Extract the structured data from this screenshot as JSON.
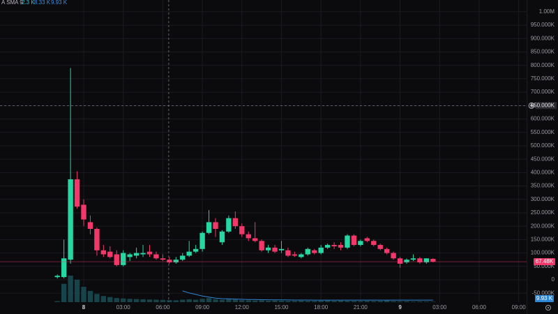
{
  "chart_data": {
    "type": "candlestick",
    "legend": {
      "name": "A SMA 9",
      "values": [
        "2.3 K",
        "8.33 K",
        "9.93 K"
      ]
    },
    "x": [
      -2,
      -1.5,
      -1,
      -0.5,
      0,
      0.5,
      1,
      1.5,
      2,
      2.5,
      3,
      3.5,
      4,
      4.5,
      5,
      5.5,
      6,
      6.5,
      7,
      7.5,
      8,
      8.5,
      9,
      9.5,
      10,
      10.5,
      11,
      11.5,
      12,
      12.5,
      13,
      13.5,
      14,
      14.5,
      15,
      15.5,
      16,
      16.5,
      17,
      17.5,
      18,
      18.5,
      19,
      19.5,
      20,
      20.5,
      21,
      21.5,
      22,
      22.5,
      23,
      23.5,
      24,
      24.5,
      25,
      25.5,
      26,
      26.5
    ],
    "open": [
      10,
      10,
      75,
      375,
      280,
      215,
      190,
      110,
      105,
      95,
      55,
      85,
      90,
      95,
      105,
      95,
      80,
      75,
      65,
      75,
      90,
      105,
      115,
      175,
      215,
      140,
      180,
      230,
      200,
      170,
      155,
      145,
      110,
      120,
      110,
      110,
      95,
      85,
      95,
      110,
      100,
      120,
      130,
      130,
      120,
      165,
      130,
      155,
      145,
      130,
      115,
      100,
      80,
      65,
      75,
      80,
      65,
      78
    ],
    "high": [
      20,
      150,
      790,
      405,
      300,
      240,
      195,
      130,
      125,
      110,
      110,
      100,
      120,
      130,
      130,
      105,
      95,
      85,
      85,
      100,
      145,
      130,
      180,
      260,
      230,
      185,
      240,
      255,
      210,
      180,
      215,
      150,
      130,
      130,
      145,
      120,
      105,
      100,
      120,
      115,
      130,
      135,
      140,
      140,
      170,
      170,
      150,
      160,
      150,
      135,
      120,
      105,
      85,
      80,
      95,
      85,
      80,
      80
    ],
    "low": [
      5,
      5,
      60,
      265,
      200,
      170,
      90,
      85,
      80,
      50,
      50,
      70,
      80,
      85,
      85,
      75,
      70,
      60,
      60,
      70,
      85,
      100,
      105,
      170,
      160,
      130,
      175,
      190,
      160,
      145,
      140,
      105,
      100,
      100,
      100,
      85,
      85,
      80,
      90,
      95,
      95,
      115,
      115,
      110,
      115,
      125,
      125,
      140,
      125,
      110,
      95,
      75,
      45,
      60,
      70,
      60,
      60,
      65
    ],
    "close": [
      15,
      80,
      375,
      273,
      225,
      190,
      110,
      95,
      85,
      55,
      100,
      95,
      100,
      100,
      95,
      80,
      75,
      65,
      75,
      90,
      105,
      115,
      175,
      215,
      190,
      180,
      230,
      200,
      170,
      155,
      145,
      110,
      120,
      105,
      115,
      90,
      90,
      95,
      115,
      100,
      120,
      130,
      125,
      120,
      165,
      130,
      145,
      145,
      130,
      115,
      100,
      80,
      60,
      75,
      80,
      65,
      80,
      67.48
    ],
    "volume": [
      5,
      90,
      130,
      110,
      75,
      55,
      40,
      30,
      25,
      20,
      18,
      16,
      15,
      14,
      13,
      12,
      11,
      10,
      9,
      12,
      14,
      12,
      16,
      20,
      14,
      12,
      15,
      13,
      10,
      9,
      8,
      9,
      7,
      8,
      7,
      6,
      6,
      7,
      6,
      6,
      7,
      8,
      6,
      7,
      6,
      6,
      5,
      6,
      5,
      6,
      8,
      5,
      4,
      5,
      3,
      4,
      3,
      2.3
    ],
    "volume_sma": [
      null,
      null,
      null,
      null,
      null,
      null,
      null,
      null,
      null,
      null,
      null,
      null,
      null,
      null,
      null,
      null,
      null,
      null,
      null,
      55,
      45,
      38,
      30,
      25,
      20,
      17,
      16,
      15,
      14,
      13,
      12.5,
      12,
      11.5,
      11,
      10.8,
      10.5,
      10.3,
      10.2,
      10.1,
      10,
      10,
      9.9,
      9.9,
      9.9,
      9.9,
      9.9,
      9.9,
      9.9,
      9.9,
      9.9,
      9.9,
      9.9,
      9.9,
      9.9,
      9.9,
      9.9,
      9.9,
      9.93
    ],
    "up_color": "#26d6a3",
    "down_color": "#f2386a",
    "volume_color": "#17434b",
    "volume_sma_color": "#2f86d6",
    "xlim": [
      -6.35,
      33.6
    ],
    "xticks": [
      {
        "value": 0,
        "label": "8"
      },
      {
        "value": 3,
        "label": "03:00"
      },
      {
        "value": 6,
        "label": "06:00"
      },
      {
        "value": 9,
        "label": "09:00"
      },
      {
        "value": 12,
        "label": "12:00"
      },
      {
        "value": 15,
        "label": "15:00"
      },
      {
        "value": 18,
        "label": "18:00"
      },
      {
        "value": 21,
        "label": "21:00"
      },
      {
        "value": 24,
        "label": "9"
      },
      {
        "value": 27,
        "label": "03:00"
      },
      {
        "value": 30,
        "label": "06:00"
      },
      {
        "value": 33,
        "label": "09:00"
      }
    ],
    "ylim": [
      -101.6,
      1044
    ],
    "yticks": [
      {
        "value": -50,
        "label": "-50.000K"
      },
      0,
      {
        "value": 50,
        "label": "50.000K"
      },
      {
        "value": 100,
        "label": "100.000K"
      },
      {
        "value": 150,
        "label": "150.000K"
      },
      {
        "value": 200,
        "label": "200.000K"
      },
      {
        "value": 250,
        "label": "250.000K"
      },
      {
        "value": 300,
        "label": "300.000K"
      },
      {
        "value": 350,
        "label": "350.000K"
      },
      {
        "value": 400,
        "label": "400.000K"
      },
      {
        "value": 450,
        "label": "450.000K"
      },
      {
        "value": 500,
        "label": "500.000K"
      },
      {
        "value": 550,
        "label": "550.000K"
      },
      {
        "value": 600,
        "label": "600.000K"
      },
      {
        "value": 650,
        "label": "650.000K"
      },
      {
        "value": 700,
        "label": "700.000K"
      },
      {
        "value": 750,
        "label": "750.000K"
      },
      {
        "value": 800,
        "label": "800.000K"
      },
      {
        "value": 850,
        "label": "850.000K"
      },
      {
        "value": 900,
        "label": "900.000K"
      },
      {
        "value": 950,
        "label": "950.000K"
      },
      {
        "value": 1000,
        "label": "1.00M"
      }
    ],
    "grid": true,
    "last_price_label": "67.48K",
    "crosshair": {
      "x": 6.45,
      "y": {
        "value": 650,
        "label": "650.000K"
      }
    }
  }
}
